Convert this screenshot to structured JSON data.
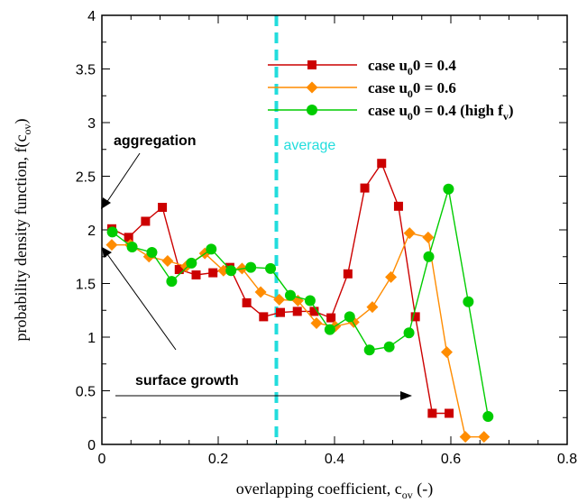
{
  "chart_data": {
    "type": "line",
    "xlabel": "overlapping coefficient, c",
    "xlabel_sub": "ov",
    "xlabel_suffix": " (-)",
    "ylabel": "probability density function, f(c",
    "ylabel_sub": "ov",
    "ylabel_suffix": ")",
    "xlim": [
      0,
      0.8
    ],
    "ylim": [
      0,
      4
    ],
    "xticks": [
      "0",
      "0.2",
      "0.4",
      "0.6",
      "0.8"
    ],
    "yticks": [
      "0",
      "0.5",
      "1",
      "1.5",
      "2",
      "2.5",
      "3",
      "3.5",
      "4"
    ],
    "grid": false,
    "legend_position": "top-right",
    "series": [
      {
        "name": "case u0 = 0.4",
        "legend": {
          "prefix": "case u",
          "sub": "0",
          "rest": "0 = 0.4",
          "tail_sub": "",
          "tail": ""
        },
        "color": "#cc0000",
        "marker": "square",
        "x": [
          0.017,
          0.046,
          0.075,
          0.104,
          0.133,
          0.162,
          0.191,
          0.22,
          0.249,
          0.278,
          0.307,
          0.336,
          0.365,
          0.394,
          0.423,
          0.452,
          0.481,
          0.51,
          0.539,
          0.568,
          0.597
        ],
        "y": [
          2.01,
          1.93,
          2.08,
          2.21,
          1.63,
          1.58,
          1.6,
          1.65,
          1.32,
          1.19,
          1.23,
          1.24,
          1.24,
          1.18,
          1.59,
          2.39,
          2.62,
          2.22,
          1.19,
          0.29,
          0.29
        ]
      },
      {
        "name": "case u0 = 0.6",
        "legend": {
          "prefix": "case u",
          "sub": "0",
          "rest": "0 = 0.6",
          "tail_sub": "",
          "tail": ""
        },
        "color": "#ff8c00",
        "marker": "diamond",
        "x": [
          0.017,
          0.049,
          0.081,
          0.113,
          0.145,
          0.177,
          0.209,
          0.241,
          0.273,
          0.305,
          0.337,
          0.369,
          0.401,
          0.433,
          0.465,
          0.497,
          0.529,
          0.561,
          0.593,
          0.625,
          0.657
        ],
        "y": [
          1.86,
          1.86,
          1.75,
          1.71,
          1.66,
          1.78,
          1.62,
          1.64,
          1.42,
          1.35,
          1.34,
          1.13,
          1.1,
          1.14,
          1.28,
          1.56,
          1.97,
          1.93,
          0.86,
          0.07,
          0.07
        ]
      },
      {
        "name": "case u0 = 0.4 (high fv)",
        "legend": {
          "prefix": "case u",
          "sub": "0",
          "rest": "0 = 0.4 (high f",
          "tail_sub": "v",
          "tail": ")"
        },
        "color": "#00cc00",
        "marker": "circle",
        "x": [
          0.018,
          0.052,
          0.086,
          0.12,
          0.154,
          0.188,
          0.222,
          0.256,
          0.29,
          0.324,
          0.358,
          0.392,
          0.426,
          0.46,
          0.494,
          0.528,
          0.562,
          0.596,
          0.63,
          0.664
        ],
        "y": [
          1.98,
          1.84,
          1.79,
          1.52,
          1.69,
          1.82,
          1.62,
          1.65,
          1.64,
          1.39,
          1.34,
          1.07,
          1.19,
          0.88,
          0.91,
          1.04,
          1.75,
          2.38,
          1.33,
          0.26
        ]
      }
    ],
    "average_line": {
      "x": 0.3,
      "label": "average",
      "color": "#22dddd"
    },
    "annotations": {
      "aggregation": "aggregation",
      "surface_growth": "surface growth"
    }
  }
}
